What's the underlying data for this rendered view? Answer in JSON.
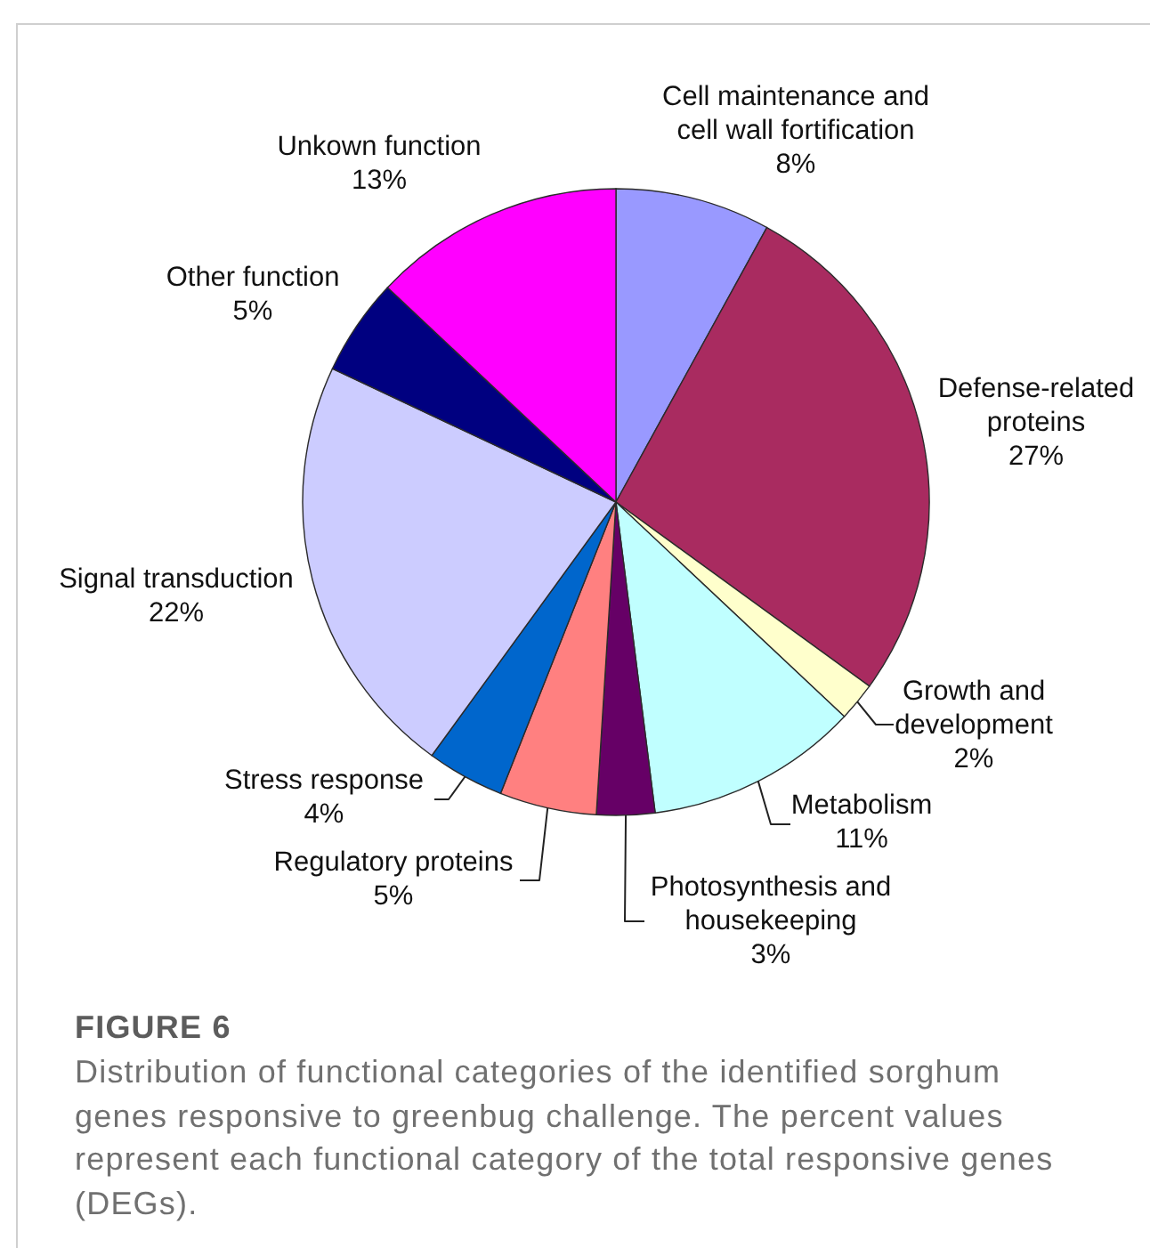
{
  "chart_data": {
    "type": "pie",
    "title": "FIGURE 6",
    "subtitle": "Distribution of functional categories of the identified sorghum genes responsive to greenbug challenge. The percent values represent each functional category of the total responsive genes (DEGs).",
    "categories": [
      "Cell maintenance and cell wall fortification",
      "Defense-related proteins",
      "Growth and development",
      "Metabolism",
      "Photosynthesis and housekeeping",
      "Regulatory proteins",
      "Stress response",
      "Signal transduction",
      "Other function",
      "Unkown function"
    ],
    "values": [
      8,
      27,
      2,
      11,
      3,
      5,
      4,
      22,
      5,
      13
    ],
    "colors": [
      "#9999ff",
      "#a92b60",
      "#ffffcc",
      "#c0ffff",
      "#660066",
      "#ff8080",
      "#0066cc",
      "#ccccff",
      "#000080",
      "#ff00ff"
    ],
    "value_labels": [
      "8%",
      "27%",
      "2%",
      "11%",
      "3%",
      "5%",
      "4%",
      "22%",
      "5%",
      "13%"
    ]
  }
}
